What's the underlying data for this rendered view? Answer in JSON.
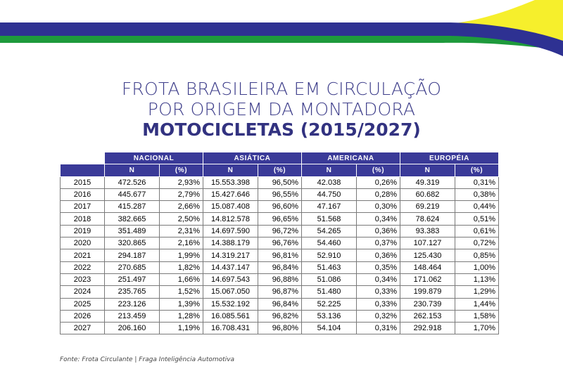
{
  "title": {
    "line1": "FROTA BRASILEIRA EM CIRCULAÇÃO",
    "line2": "POR ORIGEM DA MONTADORA",
    "line3": "MOTOCICLETAS (2015/2027)"
  },
  "colors": {
    "blue": "#2e3192",
    "green": "#1e9a3c",
    "yellow": "#f6ef2c",
    "header": "#3a3a98"
  },
  "groups": [
    "NACIONAL",
    "ASIÁTICA",
    "AMERICANA",
    "EUROPÉIA"
  ],
  "subheaders": {
    "n": "N",
    "pct": "(%)"
  },
  "rows": [
    {
      "year": "2015",
      "cells": [
        "472.526",
        "2,93%",
        "15.553.398",
        "96,50%",
        "42.038",
        "0,26%",
        "49.319",
        "0,31%"
      ]
    },
    {
      "year": "2016",
      "cells": [
        "445.677",
        "2,79%",
        "15.427.646",
        "96,55%",
        "44.750",
        "0,28%",
        "60.682",
        "0,38%"
      ]
    },
    {
      "year": "2017",
      "cells": [
        "415.287",
        "2,66%",
        "15.087.408",
        "96,60%",
        "47.167",
        "0,30%",
        "69.219",
        "0,44%"
      ]
    },
    {
      "year": "2018",
      "cells": [
        "382.665",
        "2,50%",
        "14.812.578",
        "96,65%",
        "51.568",
        "0,34%",
        "78.624",
        "0,51%"
      ]
    },
    {
      "year": "2019",
      "cells": [
        "351.489",
        "2,31%",
        "14.697.590",
        "96,72%",
        "54.265",
        "0,36%",
        "93.383",
        "0,61%"
      ]
    },
    {
      "year": "2020",
      "cells": [
        "320.865",
        "2,16%",
        "14.388.179",
        "96,76%",
        "54.460",
        "0,37%",
        "107.127",
        "0,72%"
      ]
    },
    {
      "year": "2021",
      "cells": [
        "294.187",
        "1,99%",
        "14.319.217",
        "96,81%",
        "52.910",
        "0,36%",
        "125.430",
        "0,85%"
      ]
    },
    {
      "year": "2022",
      "cells": [
        "270.685",
        "1,82%",
        "14.437.147",
        "96,84%",
        "51.463",
        "0,35%",
        "148.464",
        "1,00%"
      ]
    },
    {
      "year": "2023",
      "cells": [
        "251.497",
        "1,66%",
        "14.697.543",
        "96,88%",
        "51.086",
        "0,34%",
        "171.062",
        "1,13%"
      ]
    },
    {
      "year": "2024",
      "cells": [
        "235.765",
        "1,52%",
        "15.067.050",
        "96,87%",
        "51.480",
        "0,33%",
        "199.879",
        "1,29%"
      ]
    },
    {
      "year": "2025",
      "cells": [
        "223.126",
        "1,39%",
        "15.532.192",
        "96,84%",
        "52.225",
        "0,33%",
        "230.739",
        "1,44%"
      ]
    },
    {
      "year": "2026",
      "cells": [
        "213.459",
        "1,28%",
        "16.085.561",
        "96,82%",
        "53.136",
        "0,32%",
        "262.153",
        "1,58%"
      ]
    },
    {
      "year": "2027",
      "cells": [
        "206.160",
        "1,19%",
        "16.708.431",
        "96,80%",
        "54.104",
        "0,31%",
        "292.918",
        "1,70%"
      ]
    }
  ],
  "source": "Fonte: Frota Circulante | Fraga Inteligência Automotiva"
}
